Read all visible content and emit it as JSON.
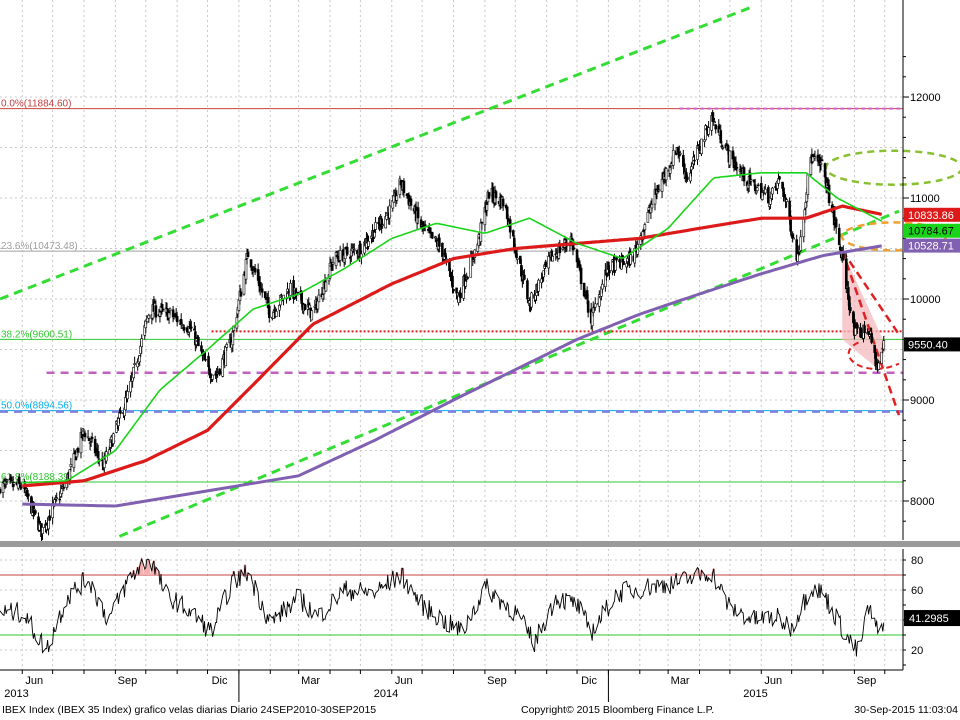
{
  "chart_data": [
    {
      "type": "candlestick",
      "title": "IBEX Index (IBEX 35 Index) grafico velas diarias",
      "y_axis": {
        "ticks": [
          8000,
          9000,
          10000,
          11000,
          12000
        ],
        "range": [
          7650,
          12400
        ],
        "side": "right"
      },
      "x_axis": {
        "month_labels": [
          "Jun",
          "Sep",
          "Dic",
          "Mar",
          "Jun",
          "Sep",
          "Dic",
          "Mar",
          "Jun",
          "Sep"
        ],
        "year_labels": [
          "2013",
          "2014",
          "2015"
        ]
      },
      "series": [
        {
          "kind": "close",
          "anchors": [
            [
              "2013-06-01",
              8150
            ],
            [
              "2013-06-20",
              7700
            ],
            [
              "2013-07-15",
              8200
            ],
            [
              "2013-08-01",
              8700
            ],
            [
              "2013-08-20",
              8350
            ],
            [
              "2013-09-15",
              9100
            ],
            [
              "2013-10-05",
              9900
            ],
            [
              "2013-10-25",
              9850
            ],
            [
              "2013-11-15",
              9700
            ],
            [
              "2013-12-01",
              9300
            ],
            [
              "2013-12-10",
              9250
            ],
            [
              "2013-12-25",
              9600
            ],
            [
              "2014-01-10",
              10450
            ],
            [
              "2014-02-01",
              9850
            ],
            [
              "2014-02-20",
              10100
            ],
            [
              "2014-03-15",
              9850
            ],
            [
              "2014-04-05",
              10400
            ],
            [
              "2014-05-01",
              10500
            ],
            [
              "2014-06-01",
              10900
            ],
            [
              "2014-06-10",
              11150
            ],
            [
              "2014-07-01",
              10700
            ],
            [
              "2014-07-20",
              10500
            ],
            [
              "2014-08-05",
              10000
            ],
            [
              "2014-08-25",
              10550
            ],
            [
              "2014-09-05",
              11050
            ],
            [
              "2014-09-20",
              10950
            ],
            [
              "2014-10-15",
              9950
            ],
            [
              "2014-11-05",
              10400
            ],
            [
              "2014-11-25",
              10600
            ],
            [
              "2014-12-15",
              9800
            ],
            [
              "2014-12-31",
              10300
            ],
            [
              "2015-01-25",
              10400
            ],
            [
              "2015-02-15",
              11000
            ],
            [
              "2015-03-10",
              11500
            ],
            [
              "2015-03-20",
              11200
            ],
            [
              "2015-04-13",
              11800
            ],
            [
              "2015-05-01",
              11400
            ],
            [
              "2015-05-20",
              11150
            ],
            [
              "2015-06-10",
              11000
            ],
            [
              "2015-06-20",
              11200
            ],
            [
              "2015-07-07",
              10400
            ],
            [
              "2015-07-20",
              11400
            ],
            [
              "2015-08-01",
              11300
            ],
            [
              "2015-08-20",
              10400
            ],
            [
              "2015-09-01",
              9650
            ],
            [
              "2015-09-15",
              9700
            ],
            [
              "2015-09-24",
              9300
            ],
            [
              "2015-09-30",
              9550
            ]
          ]
        },
        {
          "kind": "sma50",
          "color": "#1ad41a",
          "anchors": [
            [
              "2013-06-01",
              8180
            ],
            [
              "2013-07-15",
              8200
            ],
            [
              "2013-09-01",
              8500
            ],
            [
              "2013-10-15",
              9100
            ],
            [
              "2013-12-01",
              9500
            ],
            [
              "2014-01-15",
              9900
            ],
            [
              "2014-03-01",
              10050
            ],
            [
              "2014-04-15",
              10300
            ],
            [
              "2014-06-01",
              10600
            ],
            [
              "2014-07-15",
              10750
            ],
            [
              "2014-09-01",
              10650
            ],
            [
              "2014-10-15",
              10800
            ],
            [
              "2014-12-01",
              10550
            ],
            [
              "2015-01-15",
              10400
            ],
            [
              "2015-03-01",
              10700
            ],
            [
              "2015-04-15",
              11200
            ],
            [
              "2015-06-01",
              11250
            ],
            [
              "2015-07-15",
              11250
            ],
            [
              "2015-08-15",
              11000
            ],
            [
              "2015-09-30",
              10760
            ]
          ]
        },
        {
          "kind": "sma200",
          "color": "#dd1a1a",
          "anchors": [
            [
              "2013-06-01",
              8150
            ],
            [
              "2013-08-01",
              8200
            ],
            [
              "2013-10-01",
              8400
            ],
            [
              "2013-12-01",
              8700
            ],
            [
              "2014-01-15",
              9150
            ],
            [
              "2014-03-15",
              9750
            ],
            [
              "2014-06-01",
              10150
            ],
            [
              "2014-08-01",
              10400
            ],
            [
              "2014-10-01",
              10500
            ],
            [
              "2014-12-01",
              10550
            ],
            [
              "2015-02-01",
              10600
            ],
            [
              "2015-04-01",
              10700
            ],
            [
              "2015-06-01",
              10800
            ],
            [
              "2015-07-15",
              10800
            ],
            [
              "2015-08-20",
              10920
            ],
            [
              "2015-09-30",
              10833.86
            ]
          ]
        },
        {
          "kind": "sma_long",
          "color": "#8060b0",
          "anchors": [
            [
              "2013-06-01",
              7970
            ],
            [
              "2013-09-01",
              7950
            ],
            [
              "2013-12-01",
              8100
            ],
            [
              "2014-03-01",
              8250
            ],
            [
              "2014-05-15",
              8600
            ],
            [
              "2014-08-01",
              9000
            ],
            [
              "2014-10-01",
              9300
            ],
            [
              "2014-12-01",
              9600
            ],
            [
              "2015-02-01",
              9850
            ],
            [
              "2015-04-01",
              10050
            ],
            [
              "2015-06-01",
              10250
            ],
            [
              "2015-08-01",
              10430
            ],
            [
              "2015-09-30",
              10528.71
            ]
          ]
        }
      ],
      "fibonacci": [
        {
          "label": "0.0%(11884.60)",
          "value": 11884.6,
          "color": "#c84040"
        },
        {
          "label": "23.6%(10473.48)",
          "value": 10473.48,
          "color": "#a0a0a0"
        },
        {
          "label": "38.2%(9600.51)",
          "value": 9600.51,
          "color": "#2ec82e"
        },
        {
          "label": "50.0%(8894.56)",
          "value": 8894.56,
          "color": "#00b0f0"
        },
        {
          "label": "61.8%(8188.39)",
          "value": 8188.39,
          "color": "#2ec82e"
        }
      ],
      "last_value_labels": [
        {
          "value": "10833.86",
          "bg": "#dd1a1a",
          "fg": "#ffffff"
        },
        {
          "value": "10784.67",
          "bg": "#1ad41a",
          "fg": "#000000"
        },
        {
          "value": "10528.71",
          "bg": "#8060b0",
          "fg": "#ffffff"
        },
        {
          "value": "9550.40",
          "bg": "#000000",
          "fg": "#ffffff"
        }
      ]
    },
    {
      "type": "line",
      "title": "RSI",
      "y_axis": {
        "ticks": [
          20,
          40,
          60,
          80
        ],
        "range": [
          12,
          90
        ]
      },
      "levels": [
        70,
        30
      ],
      "last_value": "41.2985",
      "anchors": [
        [
          "2013-06-01",
          45
        ],
        [
          "2013-06-25",
          20
        ],
        [
          "2013-07-15",
          55
        ],
        [
          "2013-08-05",
          68
        ],
        [
          "2013-08-25",
          40
        ],
        [
          "2013-09-15",
          68
        ],
        [
          "2013-10-05",
          82
        ],
        [
          "2013-10-20",
          58
        ],
        [
          "2013-11-15",
          45
        ],
        [
          "2013-12-05",
          32
        ],
        [
          "2013-12-25",
          65
        ],
        [
          "2014-01-10",
          72
        ],
        [
          "2014-02-01",
          38
        ],
        [
          "2014-03-01",
          55
        ],
        [
          "2014-03-20",
          42
        ],
        [
          "2014-04-15",
          60
        ],
        [
          "2014-05-15",
          58
        ],
        [
          "2014-06-10",
          70
        ],
        [
          "2014-07-01",
          50
        ],
        [
          "2014-07-25",
          38
        ],
        [
          "2014-08-10",
          32
        ],
        [
          "2014-09-01",
          62
        ],
        [
          "2014-10-01",
          45
        ],
        [
          "2014-10-20",
          25
        ],
        [
          "2014-11-10",
          55
        ],
        [
          "2014-12-01",
          50
        ],
        [
          "2014-12-15",
          32
        ],
        [
          "2015-01-10",
          58
        ],
        [
          "2015-02-10",
          62
        ],
        [
          "2015-03-10",
          65
        ],
        [
          "2015-04-13",
          72
        ],
        [
          "2015-05-01",
          48
        ],
        [
          "2015-05-25",
          40
        ],
        [
          "2015-06-15",
          42
        ],
        [
          "2015-07-01",
          35
        ],
        [
          "2015-07-20",
          62
        ],
        [
          "2015-08-01",
          58
        ],
        [
          "2015-08-25",
          28
        ],
        [
          "2015-09-05",
          18
        ],
        [
          "2015-09-15",
          48
        ],
        [
          "2015-09-25",
          30
        ],
        [
          "2015-09-30",
          41.3
        ]
      ]
    }
  ],
  "footer": {
    "left": "IBEX Index (IBEX 35 Index) grafico velas diarias  Diario 24SEP2010-30SEP2015",
    "center": "Copyright© 2015 Bloomberg Finance L.P.",
    "right": "30-Sep-2015 11:03:04"
  }
}
